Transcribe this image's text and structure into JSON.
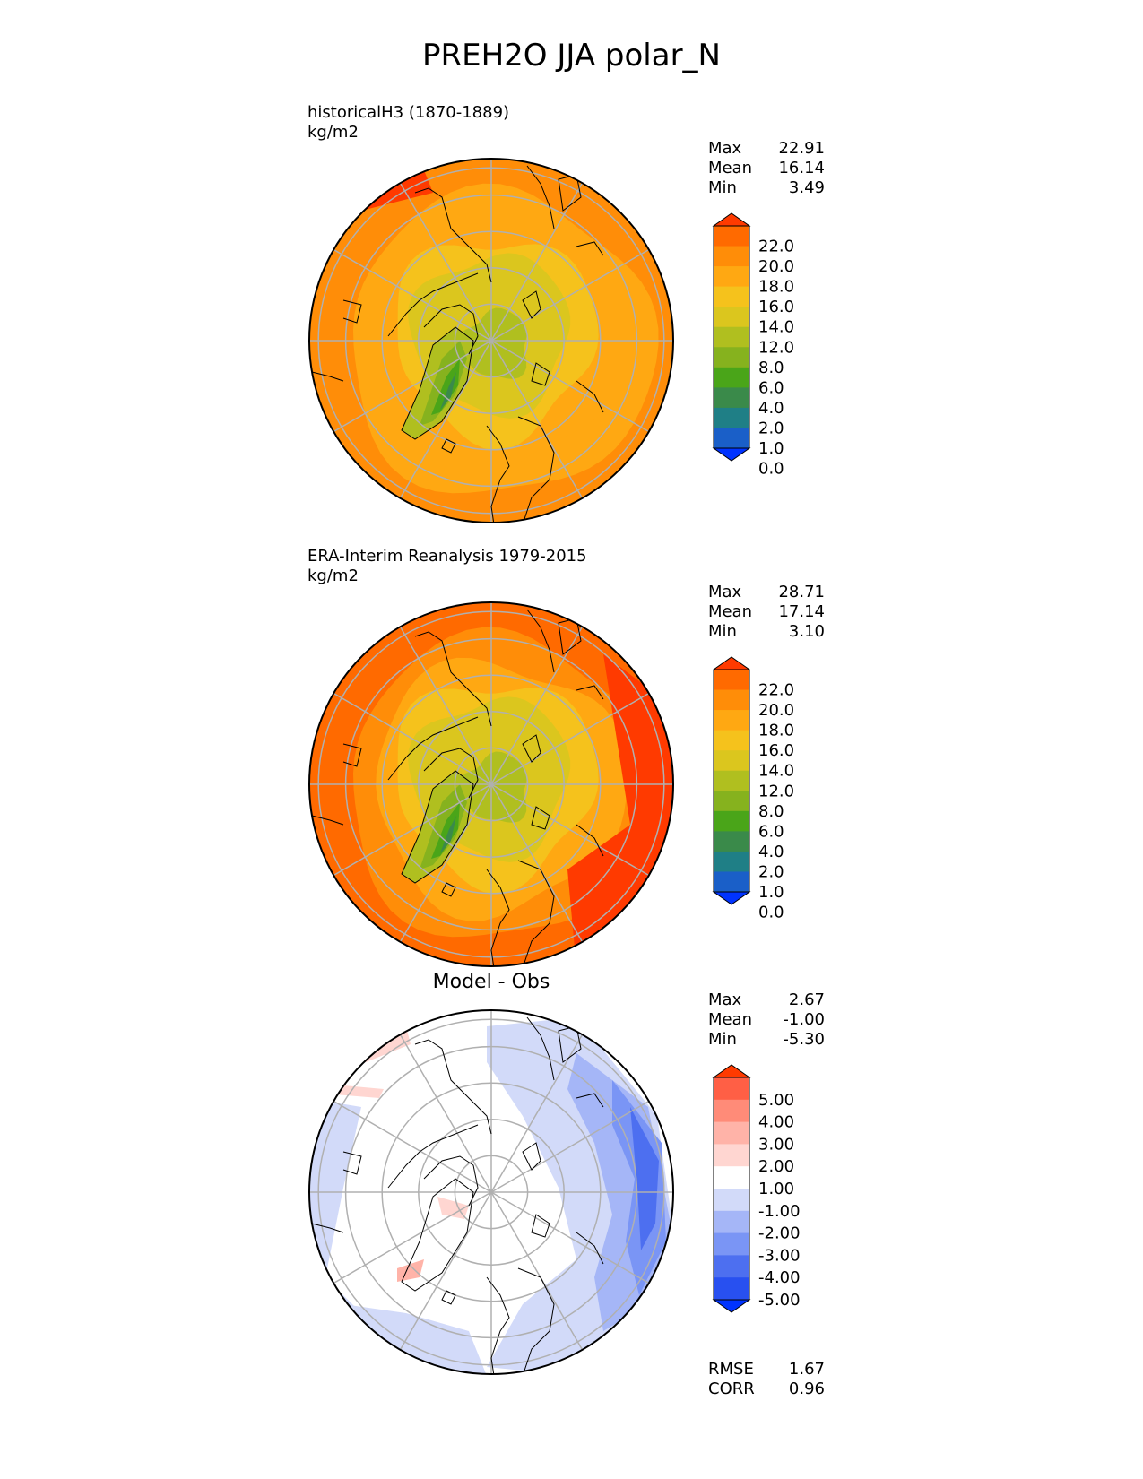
{
  "title": "PREH2O JJA polar_N",
  "colors": {
    "seq": [
      "#0033ff",
      "#1a5fc8",
      "#1f7f86",
      "#3a8a4a",
      "#4aa519",
      "#86b21e",
      "#b0bf1f",
      "#dbc61e",
      "#f5c21c",
      "#ffa812",
      "#ff8d08",
      "#ff6a00",
      "#ff3a00"
    ],
    "div": [
      "#0033ff",
      "#2850f0",
      "#4d6ff0",
      "#7a95f5",
      "#a5b6f7",
      "#d2daf9",
      "#ffffff",
      "#ffd6d1",
      "#ffb3a8",
      "#ff8b78",
      "#ff5f45",
      "#ff3a00"
    ],
    "grid": "#b0b0b0"
  },
  "panels": [
    {
      "title": "historicalH3 (1870-1889)",
      "units": "kg/m2",
      "stats": [
        {
          "label": "Max",
          "value": "22.91"
        },
        {
          "label": "Mean",
          "value": "16.14"
        },
        {
          "label": "Min",
          "value": "3.49"
        }
      ],
      "colorbar_labels": [
        "22.0",
        "20.0",
        "18.0",
        "16.0",
        "14.0",
        "12.0",
        "8.0",
        "6.0",
        "4.0",
        "2.0",
        "1.0",
        "0.0"
      ]
    },
    {
      "title": "ERA-Interim Reanalysis 1979-2015",
      "units": "kg/m2",
      "stats": [
        {
          "label": "Max",
          "value": "28.71"
        },
        {
          "label": "Mean",
          "value": "17.14"
        },
        {
          "label": "Min",
          "value": "3.10"
        }
      ],
      "colorbar_labels": [
        "22.0",
        "20.0",
        "18.0",
        "16.0",
        "14.0",
        "12.0",
        "8.0",
        "6.0",
        "4.0",
        "2.0",
        "1.0",
        "0.0"
      ]
    },
    {
      "title": "Model - Obs",
      "stats": [
        {
          "label": "Max",
          "value": "2.67"
        },
        {
          "label": "Mean",
          "value": "-1.00"
        },
        {
          "label": "Min",
          "value": "-5.30"
        }
      ],
      "colorbar_labels": [
        "5.00",
        "4.00",
        "3.00",
        "2.00",
        "1.00",
        "-1.00",
        "-2.00",
        "-3.00",
        "-4.00",
        "-5.00"
      ],
      "extra_stats": [
        {
          "label": "RMSE",
          "value": "1.67"
        },
        {
          "label": "CORR",
          "value": "0.96"
        }
      ]
    }
  ]
}
